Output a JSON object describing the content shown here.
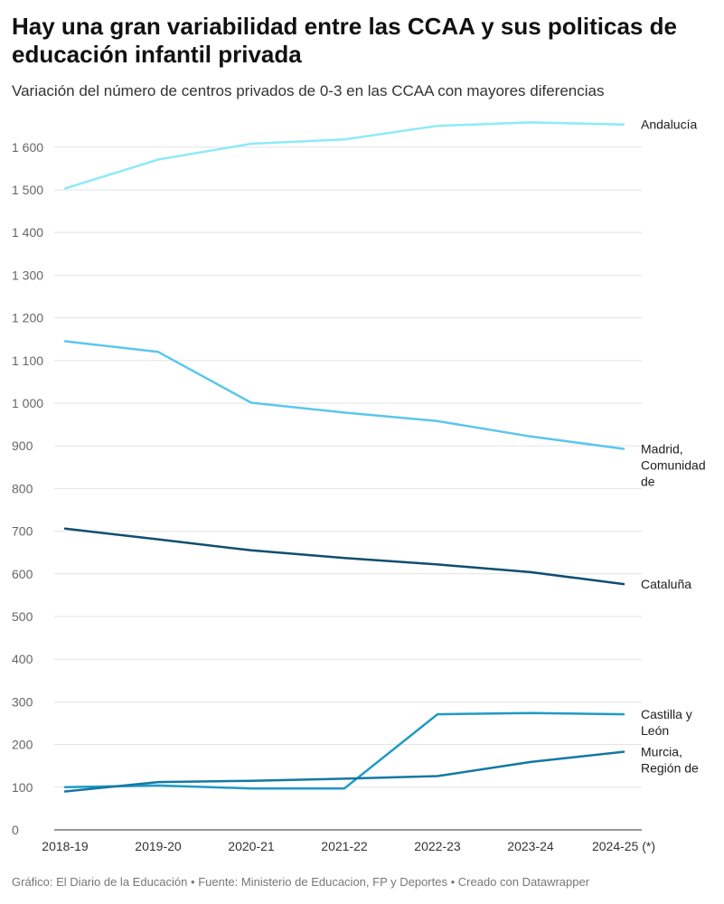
{
  "title": "Hay una gran variabilidad entre las CCAA y sus politicas de educación infantil privada",
  "subtitle": "Variación del número de centros privados de 0-3 en las CCAA con mayores diferencias",
  "footer": {
    "source_credit": "Gráfico: El Diario de la Educación",
    "data_source": "Fuente: Ministerio de Educacion, FP y Deportes",
    "tool_credit": "Creado con Datawrapper",
    "separator": "•"
  },
  "chart_data": {
    "type": "line",
    "title": "Hay una gran variabilidad entre las CCAA y sus politicas de educación infantil privada",
    "xlabel": "",
    "ylabel": "",
    "ylim": [
      0,
      1680
    ],
    "yticks": [
      0,
      100,
      200,
      300,
      400,
      500,
      600,
      700,
      800,
      900,
      1000,
      1100,
      1200,
      1300,
      1400,
      1500,
      1600
    ],
    "ytick_labels": [
      "0",
      "100",
      "200",
      "300",
      "400",
      "500",
      "600",
      "700",
      "800",
      "900",
      "1 000",
      "1 100",
      "1 200",
      "1 300",
      "1 400",
      "1 500",
      "1 600"
    ],
    "categories": [
      "2018-19",
      "2019-20",
      "2020-21",
      "2021-22",
      "2022-23",
      "2023-24",
      "2024-25 (*)"
    ],
    "grid": true,
    "series": [
      {
        "name": "Andalucía",
        "label_lines": [
          "Andalucía"
        ],
        "color": "#8eeaf8",
        "values": [
          1503,
          1571,
          1608,
          1618,
          1650,
          1658,
          1653
        ]
      },
      {
        "name": "Madrid, Comunidad de",
        "label_lines": [
          "Madrid,",
          "Comunidad",
          "de"
        ],
        "color": "#5bc7ec",
        "values": [
          1145,
          1120,
          1001,
          978,
          958,
          922,
          893
        ]
      },
      {
        "name": "Cataluña",
        "label_lines": [
          "Cataluña"
        ],
        "color": "#0e4e70",
        "values": [
          706,
          681,
          655,
          637,
          622,
          604,
          576
        ]
      },
      {
        "name": "Castilla y León",
        "label_lines": [
          "Castilla y",
          "León"
        ],
        "color": "#1f9ac8",
        "values": [
          100,
          104,
          97,
          97,
          271,
          274,
          271
        ]
      },
      {
        "name": "Murcia, Región de",
        "label_lines": [
          "Murcia,",
          "Región de"
        ],
        "color": "#1478a3",
        "values": [
          90,
          112,
          115,
          120,
          126,
          159,
          183
        ]
      }
    ]
  }
}
